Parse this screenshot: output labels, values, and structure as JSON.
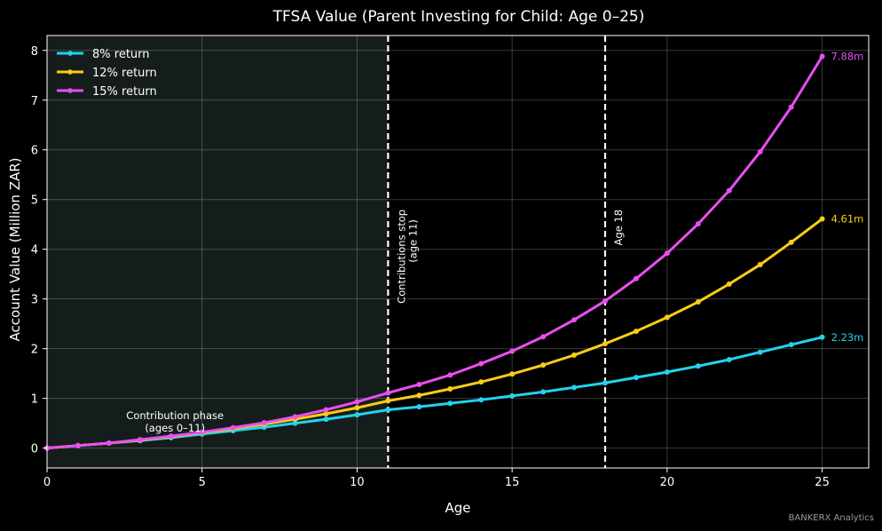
{
  "chart_data": {
    "type": "line",
    "title": "TFSA Value (Parent Investing for Child: Age 0–25)",
    "xlabel": "Age",
    "ylabel": "Account Value (Million ZAR)",
    "xlim": [
      0,
      26.5
    ],
    "ylim": [
      -0.4,
      8.3
    ],
    "xticks": [
      "0",
      "5",
      "10",
      "15",
      "20",
      "25"
    ],
    "yticks": [
      "0",
      "1",
      "2",
      "3",
      "4",
      "5",
      "6",
      "7",
      "8"
    ],
    "grid": true,
    "legend_position": "top-left",
    "x": [
      0,
      1,
      2,
      3,
      4,
      5,
      6,
      7,
      8,
      9,
      10,
      11,
      12,
      13,
      14,
      15,
      16,
      17,
      18,
      19,
      20,
      21,
      22,
      23,
      24,
      25
    ],
    "series": [
      {
        "name": "8% return",
        "color": "#22d3ee",
        "values": [
          0.0,
          0.05,
          0.1,
          0.15,
          0.21,
          0.28,
          0.35,
          0.42,
          0.5,
          0.58,
          0.67,
          0.77,
          0.83,
          0.9,
          0.97,
          1.05,
          1.13,
          1.22,
          1.31,
          1.42,
          1.53,
          1.65,
          1.78,
          1.93,
          2.08,
          2.23
        ],
        "end_label": "2.23m"
      },
      {
        "name": "12% return",
        "color": "#facc15",
        "values": [
          0.0,
          0.05,
          0.1,
          0.16,
          0.23,
          0.31,
          0.39,
          0.48,
          0.58,
          0.69,
          0.81,
          0.95,
          1.06,
          1.19,
          1.33,
          1.49,
          1.67,
          1.87,
          2.1,
          2.35,
          2.63,
          2.94,
          3.3,
          3.69,
          4.14,
          4.61
        ],
        "end_label": "4.61m"
      },
      {
        "name": "15% return",
        "color": "#e94ef0",
        "values": [
          0.0,
          0.05,
          0.1,
          0.17,
          0.24,
          0.32,
          0.41,
          0.51,
          0.63,
          0.77,
          0.93,
          1.11,
          1.28,
          1.47,
          1.7,
          1.95,
          2.24,
          2.58,
          2.96,
          3.41,
          3.92,
          4.51,
          5.18,
          5.96,
          6.86,
          7.88
        ],
        "end_label": "7.88m"
      }
    ],
    "shaded_region": {
      "x_start": 0,
      "x_end": 11,
      "color": "#151d1c"
    },
    "vlines": [
      {
        "x": 11,
        "label_line1": "Contributions stop",
        "label_line2": "(age 11)"
      },
      {
        "x": 18,
        "label_line1": "Age 18"
      }
    ],
    "annotation": {
      "line1": "Contribution phase",
      "line2": "(ages 0–11)",
      "x": 5.5,
      "y": 0.6
    }
  },
  "footer": "BANKERX Analytics"
}
